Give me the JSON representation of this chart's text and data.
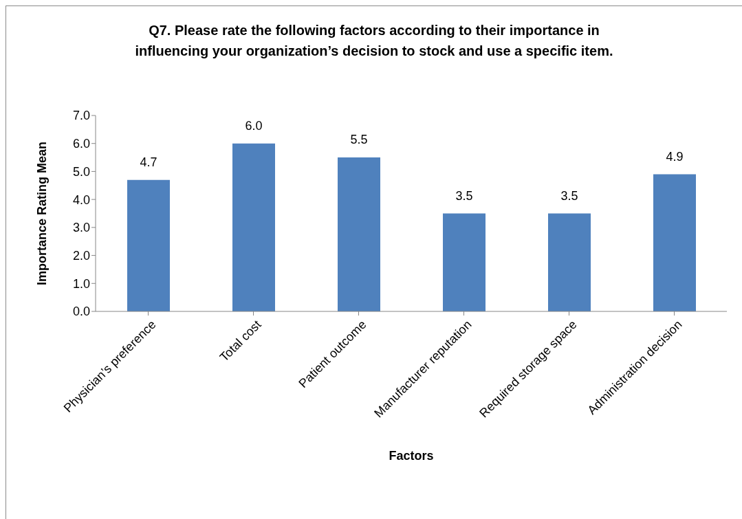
{
  "chart_data": {
    "type": "bar",
    "title": "Q7. Please rate the following factors according to their importance in influencing your organization’s decision to stock and use a specific item.",
    "xlabel": "Factors",
    "ylabel": "Importance Rating Mean",
    "categories": [
      "Physician’s preference",
      "Total cost",
      "Patient outcome",
      "Manufacturer reputation",
      "Required storage space",
      "Administration decision"
    ],
    "values": [
      4.7,
      6.0,
      5.5,
      3.5,
      3.5,
      4.9
    ],
    "value_labels": [
      "4.7",
      "6.0",
      "5.5",
      "3.5",
      "3.5",
      "4.9"
    ],
    "color": "#4f81bd",
    "ylim": [
      0,
      7
    ],
    "yticks": [
      {
        "value": 0,
        "label": "0.0"
      },
      {
        "value": 1,
        "label": "1.0"
      },
      {
        "value": 2,
        "label": "2.0"
      },
      {
        "value": 3,
        "label": "3.0"
      },
      {
        "value": 4,
        "label": "4.0"
      },
      {
        "value": 5,
        "label": "5.0"
      },
      {
        "value": 6,
        "label": "6.0"
      },
      {
        "value": 7,
        "label": "7.0"
      }
    ]
  }
}
